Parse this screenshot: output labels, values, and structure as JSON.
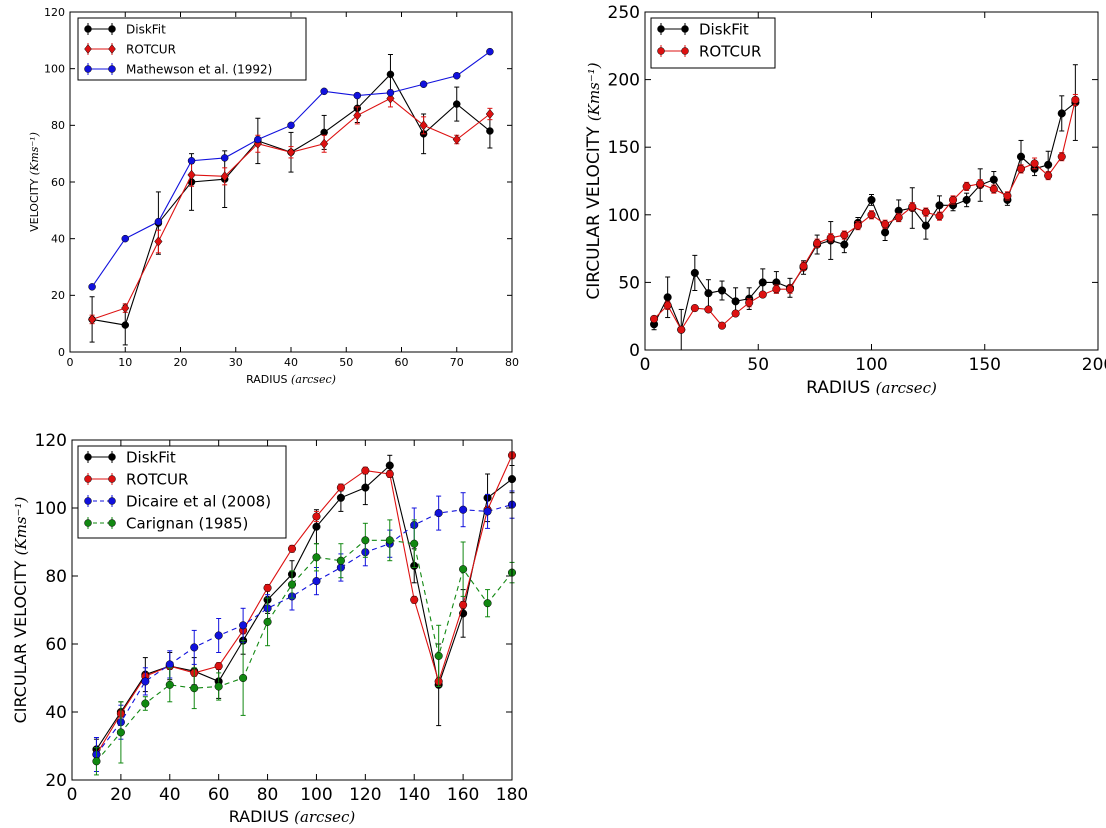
{
  "chart_data": [
    {
      "type": "line",
      "title": "",
      "xlabel": "RADIUS",
      "xlabel_unit": "(arcsec)",
      "ylabel": "VELOCITY",
      "ylabel_unit": "(Kms⁻¹)",
      "xlim": [
        0,
        80
      ],
      "ylim": [
        0,
        120
      ],
      "xticks": [
        "0",
        "10",
        "20",
        "30",
        "40",
        "50",
        "60",
        "70",
        "80"
      ],
      "yticks": [
        "0",
        "20",
        "40",
        "60",
        "80",
        "100",
        "120"
      ],
      "legend_position": "top-left",
      "series": [
        {
          "name": "DiskFit",
          "color": "#000000",
          "marker": "circle",
          "dashed": false,
          "x": [
            4,
            10,
            16,
            22,
            28,
            34,
            40,
            46,
            52,
            58,
            64,
            70,
            76
          ],
          "y": [
            11.5,
            9.5,
            45.5,
            60,
            61,
            74.5,
            70.5,
            77.5,
            86,
            98,
            77,
            87.5,
            78
          ],
          "err": [
            8,
            7,
            11,
            10,
            10,
            8,
            7,
            6,
            5,
            7,
            7,
            6,
            6
          ]
        },
        {
          "name": "ROTCUR",
          "color": "#dd1111",
          "marker": "diamond",
          "dashed": false,
          "x": [
            4,
            10,
            16,
            22,
            28,
            34,
            40,
            46,
            52,
            58,
            64,
            70,
            76
          ],
          "y": [
            11.5,
            15.5,
            39,
            62.5,
            62,
            73.5,
            70.5,
            73.5,
            83.5,
            89.5,
            80,
            75,
            84
          ],
          "err": [
            1.5,
            1.5,
            4,
            4,
            3,
            3,
            2,
            3,
            3,
            3,
            3,
            1.5,
            2
          ]
        },
        {
          "name": "Mathewson et al. (1992)",
          "color": "#1111dd",
          "marker": "circle",
          "dashed": false,
          "x": [
            4,
            10,
            16,
            22,
            28,
            34,
            40,
            46,
            52,
            58,
            64,
            70,
            76
          ],
          "y": [
            23,
            40,
            46,
            67.5,
            68.5,
            75,
            80,
            92,
            90.5,
            91.5,
            94.5,
            97.5,
            106
          ],
          "err": [
            0,
            0,
            0,
            0,
            0,
            0,
            0,
            0,
            0,
            0,
            0,
            0,
            0
          ]
        }
      ]
    },
    {
      "type": "line",
      "title": "",
      "xlabel": "RADIUS",
      "xlabel_unit": "(arcsec)",
      "ylabel": "CIRCULAR VELOCITY",
      "ylabel_unit": "(Kms⁻¹)",
      "xlim": [
        0,
        200
      ],
      "ylim": [
        0,
        250
      ],
      "xticks": [
        "0",
        "50",
        "100",
        "150",
        "200"
      ],
      "yticks": [
        "0",
        "50",
        "100",
        "150",
        "200",
        "250"
      ],
      "legend_position": "top-left",
      "series": [
        {
          "name": "DiskFit",
          "color": "#000000",
          "marker": "circle",
          "dashed": false,
          "x": [
            4,
            10,
            16,
            22,
            28,
            34,
            40,
            46,
            52,
            58,
            64,
            70,
            76,
            82,
            88,
            94,
            100,
            106,
            112,
            118,
            124,
            130,
            136,
            142,
            148,
            154,
            160,
            166,
            172,
            178,
            184,
            190
          ],
          "y": [
            19,
            39,
            15,
            57,
            42,
            44,
            36,
            38,
            50,
            50,
            46,
            61,
            78,
            81,
            78,
            94,
            111,
            87,
            103,
            105,
            92,
            107,
            107,
            111,
            122,
            126,
            111,
            143,
            134,
            137,
            175,
            183
          ],
          "err": [
            4,
            15,
            15,
            13,
            10,
            7,
            10,
            8,
            10,
            8,
            7,
            5,
            7,
            14,
            6,
            4,
            4,
            6,
            8,
            15,
            10,
            7,
            4,
            5,
            12,
            6,
            4,
            12,
            5,
            10,
            13,
            28
          ]
        },
        {
          "name": "ROTCUR",
          "color": "#dd1111",
          "marker": "circle",
          "dashed": false,
          "x": [
            4,
            10,
            16,
            22,
            28,
            34,
            40,
            46,
            52,
            58,
            64,
            70,
            76,
            82,
            88,
            94,
            100,
            106,
            112,
            118,
            124,
            130,
            136,
            142,
            148,
            154,
            160,
            166,
            172,
            178,
            184,
            190
          ],
          "y": [
            23,
            33,
            15,
            31,
            30,
            18,
            27,
            35,
            41,
            45,
            45,
            62,
            79,
            83,
            85,
            92,
            100,
            93,
            98,
            106,
            102,
            99,
            111,
            121,
            123,
            119,
            114,
            134,
            138,
            129,
            143,
            185
          ],
          "err": [
            2,
            3,
            2,
            2,
            2,
            2,
            2,
            3,
            2,
            3,
            3,
            3,
            3,
            3,
            3,
            3,
            3,
            3,
            3,
            3,
            3,
            3,
            3,
            3,
            3,
            3,
            3,
            3,
            4,
            3,
            3,
            4
          ]
        }
      ]
    },
    {
      "type": "line",
      "title": "",
      "xlabel": "RADIUS",
      "xlabel_unit": "(arcsec)",
      "ylabel": "CIRCULAR VELOCITY",
      "ylabel_unit": "(Kms⁻¹)",
      "xlim": [
        0,
        180
      ],
      "ylim": [
        20,
        120
      ],
      "xticks": [
        "0",
        "20",
        "40",
        "60",
        "80",
        "100",
        "120",
        "140",
        "160",
        "180"
      ],
      "yticks": [
        "20",
        "40",
        "60",
        "80",
        "100",
        "120"
      ],
      "legend_position": "top-left",
      "series": [
        {
          "name": "DiskFit",
          "color": "#000000",
          "marker": "circle",
          "dashed": false,
          "x": [
            10,
            20,
            30,
            40,
            50,
            60,
            70,
            80,
            90,
            100,
            110,
            120,
            130,
            140,
            150,
            160,
            170,
            180
          ],
          "y": [
            29,
            40,
            51,
            53.5,
            52,
            49,
            61,
            73,
            80.5,
            94.5,
            103,
            106,
            112.5,
            83,
            48,
            69,
            103,
            108.5
          ],
          "err": [
            3,
            3,
            5,
            4,
            4,
            5,
            4,
            4,
            4,
            5,
            4,
            5,
            3,
            5,
            12,
            7,
            7,
            4
          ]
        },
        {
          "name": "ROTCUR",
          "color": "#dd1111",
          "marker": "circle",
          "dashed": false,
          "x": [
            10,
            20,
            30,
            40,
            50,
            60,
            70,
            80,
            90,
            100,
            110,
            120,
            130,
            140,
            150,
            160,
            170,
            180
          ],
          "y": [
            27.5,
            39.5,
            50.5,
            53.5,
            51.5,
            53.5,
            64,
            76.5,
            88,
            97.5,
            106,
            111,
            110,
            73,
            49,
            71.5,
            99.5,
            115.5
          ],
          "err": [
            1,
            1,
            1,
            1,
            1,
            1,
            1,
            1,
            1,
            1.5,
            1,
            1,
            1,
            1,
            1,
            1,
            1,
            1
          ]
        },
        {
          "name": "Dicaire et al (2008)",
          "color": "#1111dd",
          "marker": "circle",
          "dashed": true,
          "x": [
            10,
            20,
            30,
            40,
            50,
            60,
            70,
            80,
            90,
            100,
            110,
            120,
            130,
            140,
            150,
            160,
            170,
            180
          ],
          "y": [
            27.5,
            37,
            49,
            54,
            59,
            62.5,
            65.5,
            70.5,
            74,
            78.5,
            82.5,
            87,
            89.5,
            95,
            98.5,
            99.5,
            99,
            101
          ],
          "err": [
            5,
            5,
            4,
            4,
            5,
            5,
            5,
            4,
            4,
            4,
            4,
            4,
            4,
            5,
            5,
            5,
            5,
            4
          ]
        },
        {
          "name": "Carignan (1985)",
          "color": "#118811",
          "marker": "circle",
          "dashed": true,
          "x": [
            10,
            20,
            30,
            40,
            50,
            60,
            70,
            80,
            90,
            100,
            110,
            120,
            130,
            140,
            150,
            160,
            170,
            180
          ],
          "y": [
            25.5,
            34,
            42.5,
            48,
            47,
            47.5,
            50,
            66.5,
            77.5,
            85.5,
            84.5,
            90.5,
            90.5,
            89.5,
            56.5,
            82,
            72,
            81
          ],
          "err": [
            4,
            9,
            2,
            5,
            6,
            4,
            11,
            7,
            4,
            4,
            5,
            5,
            6,
            7,
            9,
            8,
            4,
            3
          ]
        }
      ]
    }
  ]
}
